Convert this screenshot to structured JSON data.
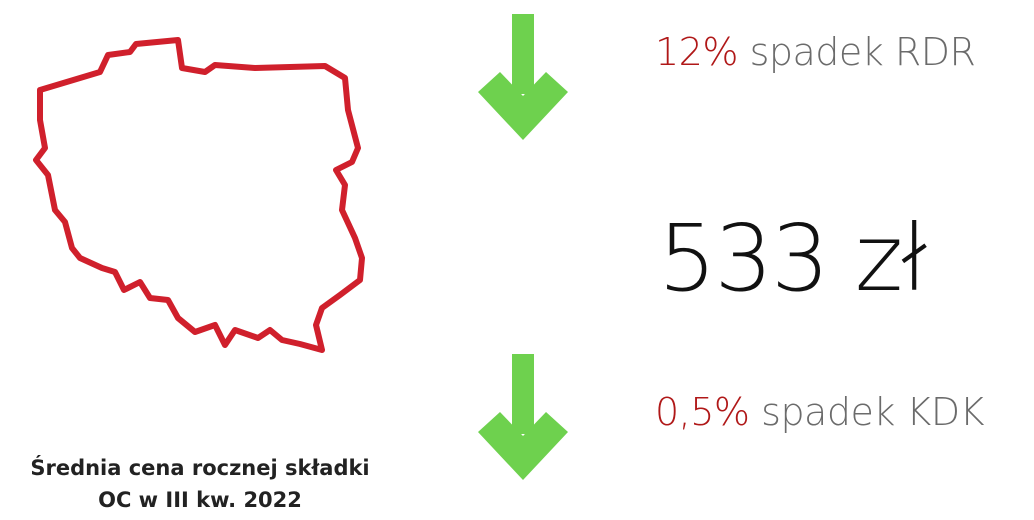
{
  "stats": [
    {
      "highlight": "12%",
      "text": "spadek RDR"
    },
    {
      "highlight": "0,5%",
      "text": "spadek KDK"
    }
  ],
  "price": "533 zł",
  "caption": {
    "line1": "Średnia cena rocznej składki",
    "line2": "OC w III kw. 2022"
  }
}
